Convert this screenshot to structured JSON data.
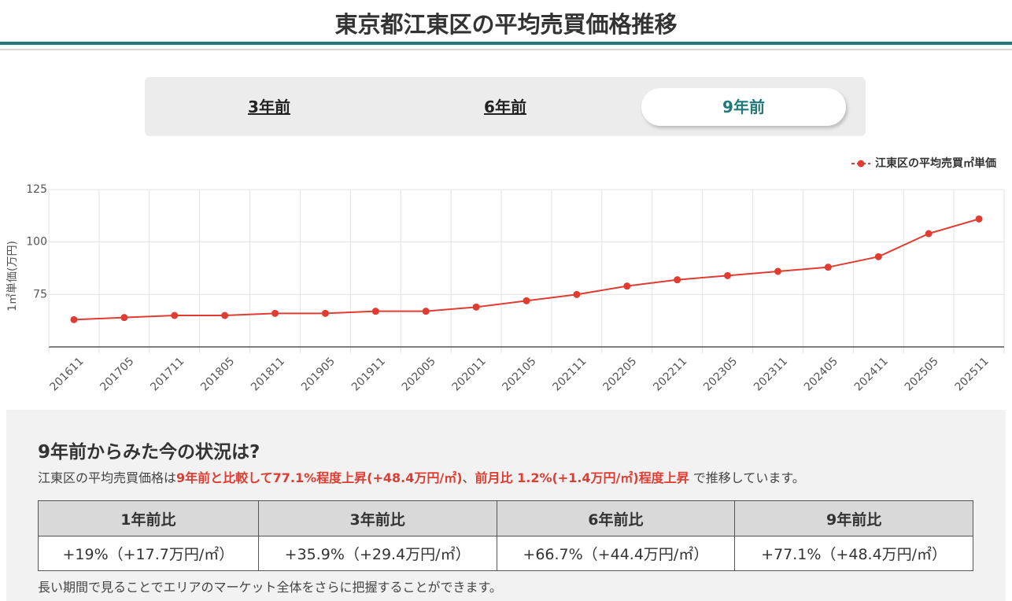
{
  "header": {
    "title": "東京都江東区の平均売買価格推移"
  },
  "tabs": [
    "3年前",
    "6年前",
    "9年前"
  ],
  "chart_data": {
    "type": "line",
    "legend": "top-right",
    "ylabel": "1㎡単価(万円)",
    "categories": [
      "201611",
      "201705",
      "201711",
      "201805",
      "201811",
      "201905",
      "201911",
      "202005",
      "202011",
      "202105",
      "202111",
      "202205",
      "202211",
      "202305",
      "202311",
      "202405",
      "202411",
      "202505",
      "202511"
    ],
    "series": [
      {
        "name": "江東区の平均売買㎡単価",
        "color": "#e03c31",
        "values": [
          63,
          64,
          65,
          65,
          66,
          66,
          67,
          67,
          69,
          72,
          75,
          79,
          82,
          84,
          86,
          88,
          93,
          104,
          111
        ]
      }
    ],
    "ylim": [
      50,
      125
    ],
    "yticks": [
      75,
      100,
      125
    ],
    "grid": true
  },
  "summary": {
    "title": "9年前からみた今の状況は?",
    "text": [
      "江東区の平均売買価格は",
      "9年前と比較して77.1%程度上昇(+48.4万円/㎡)",
      "、",
      "前月比 1.2%(+1.4万円/㎡)程度上昇",
      " で推移しています。"
    ]
  },
  "table": {
    "header": [
      "1年前比",
      "3年前比",
      "6年前比",
      "9年前比"
    ],
    "rows": [
      [
        "+19%（+17.7万円/㎡）",
        "+35.9%（+29.4万円/㎡）",
        "+66.7%（+44.4万円/㎡）",
        "+77.1%（+48.4万円/㎡）"
      ]
    ]
  },
  "note": "長い期間で見ることでエリアのマーケット全体をさらに把握することができます。"
}
